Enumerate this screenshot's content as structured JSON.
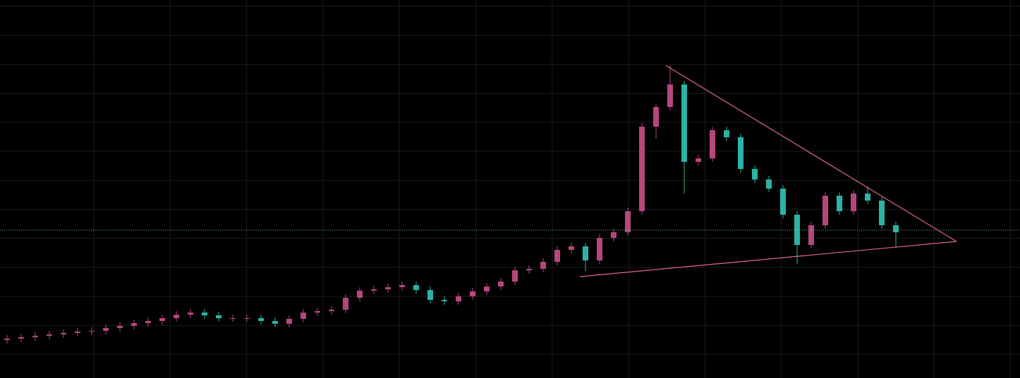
{
  "chart_data": {
    "type": "candlestick",
    "open": [
      54,
      56,
      58,
      60,
      62,
      64,
      66,
      67,
      71,
      74,
      78,
      81,
      85,
      90,
      93,
      89,
      85,
      85,
      85,
      81,
      77,
      84,
      93,
      95,
      97,
      114,
      124,
      126,
      129,
      132,
      125,
      111,
      109,
      116,
      123,
      130,
      137,
      153,
      155,
      165,
      182,
      187,
      167,
      199,
      207,
      237,
      357,
      385,
      417,
      307,
      312,
      352,
      342,
      297,
      282,
      269,
      232,
      189,
      217,
      259,
      237,
      262,
      252,
      217
    ],
    "high": [
      61,
      63,
      65,
      67,
      69,
      71,
      72,
      76,
      79,
      83,
      86,
      90,
      95,
      98,
      98,
      94,
      90,
      90,
      90,
      86,
      89,
      98,
      100,
      102,
      119,
      129,
      131,
      134,
      137,
      137,
      130,
      116,
      121,
      128,
      135,
      142,
      158,
      160,
      170,
      187,
      192,
      192,
      204,
      212,
      242,
      362,
      390,
      444,
      422,
      317,
      357,
      357,
      347,
      302,
      287,
      274,
      237,
      222,
      264,
      264,
      267,
      272,
      257,
      222
    ],
    "low": [
      49,
      51,
      53,
      55,
      57,
      59,
      61,
      62,
      66,
      69,
      73,
      76,
      80,
      85,
      84,
      80,
      80,
      80,
      76,
      72,
      72,
      79,
      88,
      90,
      92,
      109,
      119,
      121,
      124,
      120,
      106,
      104,
      104,
      111,
      118,
      125,
      132,
      148,
      150,
      160,
      177,
      152,
      162,
      194,
      202,
      232,
      340,
      380,
      262,
      302,
      307,
      337,
      292,
      277,
      264,
      227,
      162,
      184,
      212,
      232,
      232,
      247,
      212,
      185
    ],
    "close": [
      56,
      58,
      60,
      62,
      64,
      66,
      67,
      71,
      74,
      78,
      81,
      85,
      90,
      93,
      89,
      85,
      85,
      85,
      81,
      77,
      84,
      93,
      95,
      97,
      114,
      124,
      126,
      129,
      132,
      125,
      111,
      109,
      116,
      123,
      130,
      137,
      153,
      155,
      165,
      182,
      187,
      167,
      199,
      207,
      237,
      357,
      385,
      417,
      307,
      312,
      352,
      342,
      297,
      282,
      269,
      232,
      189,
      217,
      259,
      237,
      262,
      252,
      217,
      207
    ],
    "up_color": "#b5477f",
    "down_color": "#2bb3a6",
    "price_line": 210,
    "ylim": [
      0,
      537
    ],
    "grid": true
  }
}
